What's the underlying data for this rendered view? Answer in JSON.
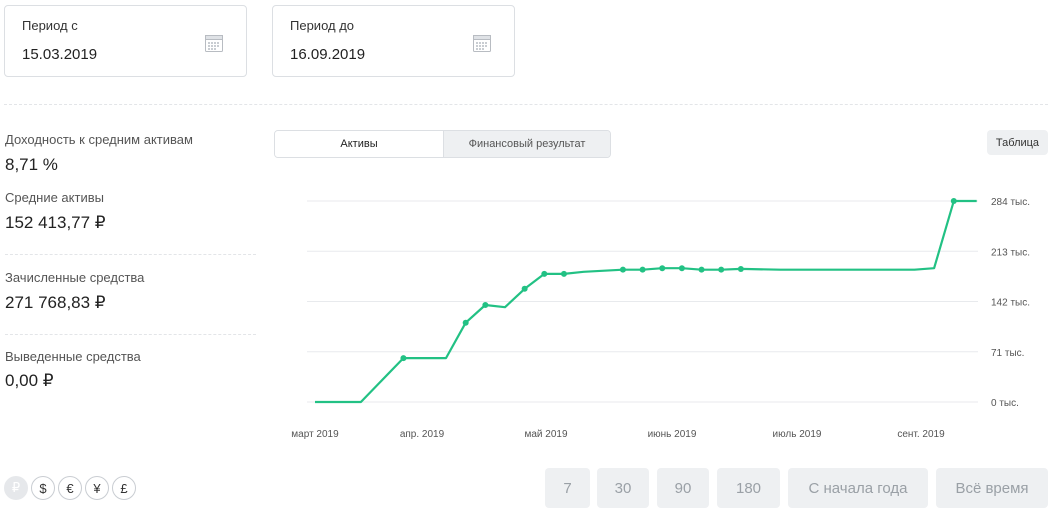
{
  "period": {
    "from": {
      "label": "Период с",
      "value": "15.03.2019",
      "icon": "calendar-icon"
    },
    "to": {
      "label": "Период до",
      "value": "16.09.2019",
      "icon": "calendar-icon"
    }
  },
  "stats": [
    {
      "label": "Доходность к средним активам",
      "value": "8,71 %"
    },
    {
      "label": "Средние активы",
      "value": "152 413,77 ₽"
    },
    {
      "label": "Зачисленные средства",
      "value": "271 768,83 ₽"
    },
    {
      "label": "Выведенные средства",
      "value": "0,00 ₽"
    }
  ],
  "tabs": {
    "assets": "Активы",
    "financial_result": "Финансовый результат",
    "active": "assets"
  },
  "table_button": "Таблица",
  "currencies": [
    "₽",
    "$",
    "€",
    "¥",
    "£"
  ],
  "active_currency": "₽",
  "ranges": [
    "7",
    "30",
    "90",
    "180",
    "С начала года",
    "Всё время"
  ],
  "colors": {
    "line": "#22c184",
    "grid": "#e8eaed",
    "button_bg": "#eef0f2"
  },
  "chart_data": {
    "type": "line",
    "title": "",
    "xlabel": "",
    "ylabel": "",
    "x_tick_labels": [
      "март 2019",
      "апр. 2019",
      "май 2019",
      "июнь 2019",
      "июль 2019",
      "сент. 2019"
    ],
    "y_tick_values": [
      0,
      71,
      142,
      213,
      284
    ],
    "y_tick_labels": [
      "0 тыс.",
      "71 тыс.",
      "142 тыс.",
      "213 тыс.",
      "284 тыс."
    ],
    "ylim": [
      0,
      284
    ],
    "xlim": [
      "2019-03-01",
      "2019-09-20"
    ],
    "series": [
      {
        "name": "Активы",
        "points": [
          {
            "date": "2019-03-01",
            "value": 0,
            "marker": false
          },
          {
            "date": "2019-03-15",
            "value": 0,
            "marker": false
          },
          {
            "date": "2019-03-28",
            "value": 62,
            "marker": true
          },
          {
            "date": "2019-04-10",
            "value": 62,
            "marker": false
          },
          {
            "date": "2019-04-16",
            "value": 112,
            "marker": true
          },
          {
            "date": "2019-04-22",
            "value": 137,
            "marker": true
          },
          {
            "date": "2019-04-28",
            "value": 134,
            "marker": false
          },
          {
            "date": "2019-05-04",
            "value": 160,
            "marker": true
          },
          {
            "date": "2019-05-10",
            "value": 181,
            "marker": true
          },
          {
            "date": "2019-05-16",
            "value": 181,
            "marker": true
          },
          {
            "date": "2019-05-22",
            "value": 184,
            "marker": false
          },
          {
            "date": "2019-06-03",
            "value": 187,
            "marker": true
          },
          {
            "date": "2019-06-09",
            "value": 187,
            "marker": true
          },
          {
            "date": "2019-06-15",
            "value": 189,
            "marker": true
          },
          {
            "date": "2019-06-21",
            "value": 189,
            "marker": true
          },
          {
            "date": "2019-06-27",
            "value": 187,
            "marker": true
          },
          {
            "date": "2019-07-03",
            "value": 187,
            "marker": true
          },
          {
            "date": "2019-07-09",
            "value": 188,
            "marker": true
          },
          {
            "date": "2019-07-21",
            "value": 187,
            "marker": false
          },
          {
            "date": "2019-08-31",
            "value": 187,
            "marker": false
          },
          {
            "date": "2019-09-06",
            "value": 189,
            "marker": false
          },
          {
            "date": "2019-09-12",
            "value": 284,
            "marker": true
          },
          {
            "date": "2019-09-19",
            "value": 284,
            "marker": false
          }
        ]
      }
    ]
  }
}
